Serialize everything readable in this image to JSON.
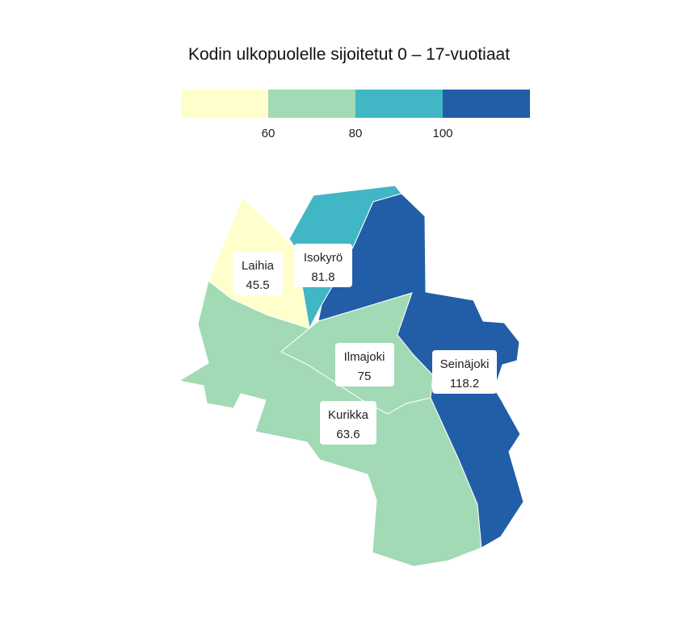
{
  "title": "Kodin ulkopuolelle sijoitetut 0 – 17-vuotiaat",
  "legend": {
    "bins": [
      {
        "color": "#ffffcc",
        "from": null,
        "to": 60
      },
      {
        "color": "#a1dab4",
        "from": 60,
        "to": 80
      },
      {
        "color": "#41b6c4",
        "from": 80,
        "to": 100
      },
      {
        "color": "#225ea8",
        "from": 100,
        "to": null
      }
    ],
    "ticks": [
      "60",
      "80",
      "100"
    ]
  },
  "regions": [
    {
      "name": "Laihia",
      "value": "45.5",
      "color": "#ffffcc"
    },
    {
      "name": "Isokyrö",
      "value": "81.8",
      "color": "#41b6c4"
    },
    {
      "name": "Ilmajoki",
      "value": "75",
      "color": "#a1dab4"
    },
    {
      "name": "Seinäjoki",
      "value": "118.2",
      "color": "#225ea8"
    },
    {
      "name": "Kurikka",
      "value": "63.6",
      "color": "#a1dab4"
    }
  ]
}
